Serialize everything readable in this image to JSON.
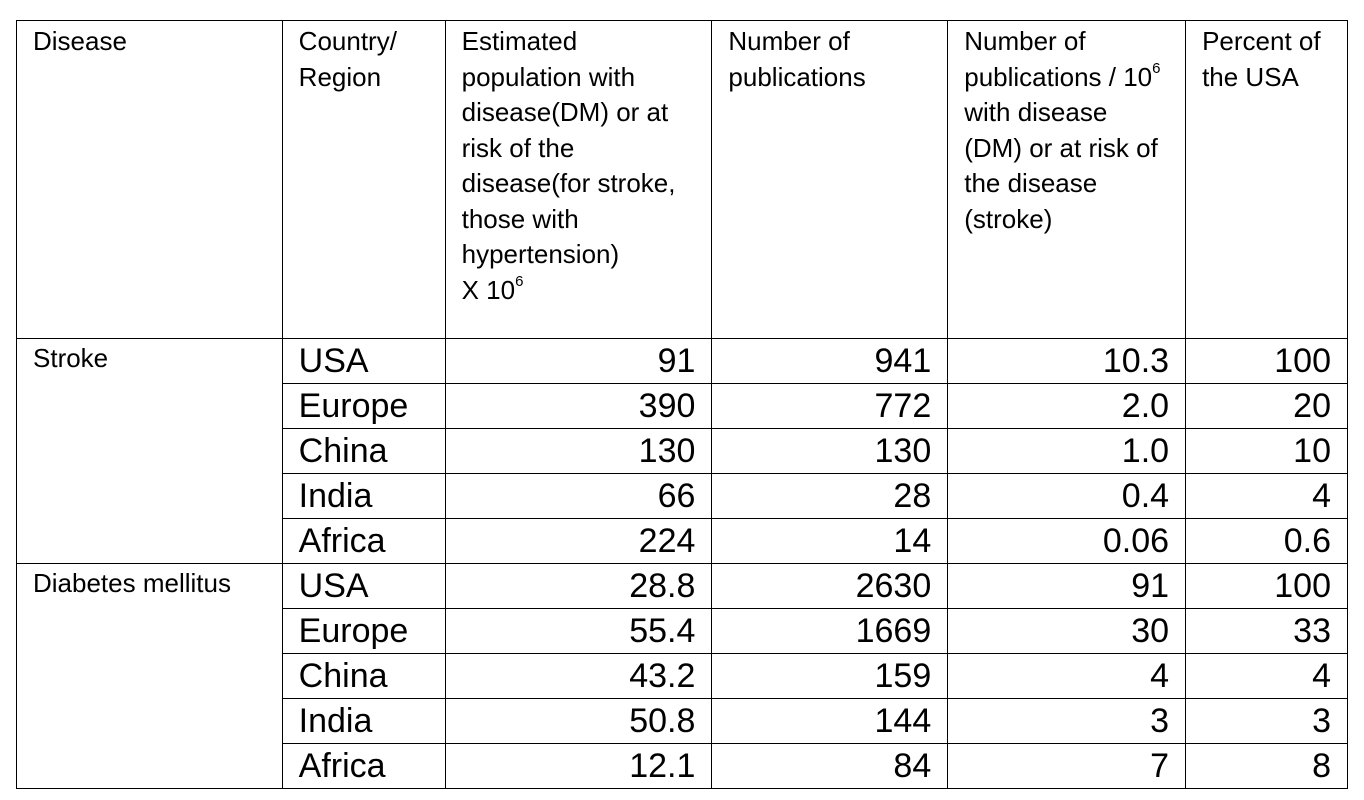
{
  "table": {
    "headers": {
      "disease": "Disease",
      "region_line1": "Country/",
      "region_line2": "Region",
      "population": "Estimated population with disease(DM) or at risk of the disease(for stroke, those with hypertension)",
      "population_unit_base": "X 10",
      "population_unit_exp": "6",
      "publications": "Number of publications",
      "per_million_prefix": "Number of publications / 10",
      "per_million_exp": "6",
      "per_million_suffix": " with disease (DM) or at risk of the disease (stroke)",
      "percent_usa": "Percent of the USA"
    },
    "groups": [
      {
        "disease": "Stroke",
        "rows": [
          {
            "region": "USA",
            "population": "91",
            "publications": "941",
            "per_million": "10.3",
            "percent": "100"
          },
          {
            "region": "Europe",
            "population": "390",
            "publications": "772",
            "per_million": "2.0",
            "percent": "20"
          },
          {
            "region": "China",
            "population": "130",
            "publications": "130",
            "per_million": "1.0",
            "percent": "10"
          },
          {
            "region": "India",
            "population": "66",
            "publications": "28",
            "per_million": "0.4",
            "percent": "4"
          },
          {
            "region": "Africa",
            "population": "224",
            "publications": "14",
            "per_million": "0.06",
            "percent": "0.6"
          }
        ]
      },
      {
        "disease": "Diabetes mellitus",
        "rows": [
          {
            "region": "USA",
            "population": "28.8",
            "publications": "2630",
            "per_million": "91",
            "percent": "100"
          },
          {
            "region": "Europe",
            "population": "55.4",
            "publications": "1669",
            "per_million": "30",
            "percent": "33"
          },
          {
            "region": "China",
            "population": "43.2",
            "publications": "159",
            "per_million": "4",
            "percent": "4"
          },
          {
            "region": "India",
            "population": "50.8",
            "publications": "144",
            "per_million": "3",
            "percent": "3"
          },
          {
            "region": "Africa",
            "population": "12.1",
            "publications": "84",
            "per_million": "7",
            "percent": "8"
          }
        ]
      }
    ]
  }
}
